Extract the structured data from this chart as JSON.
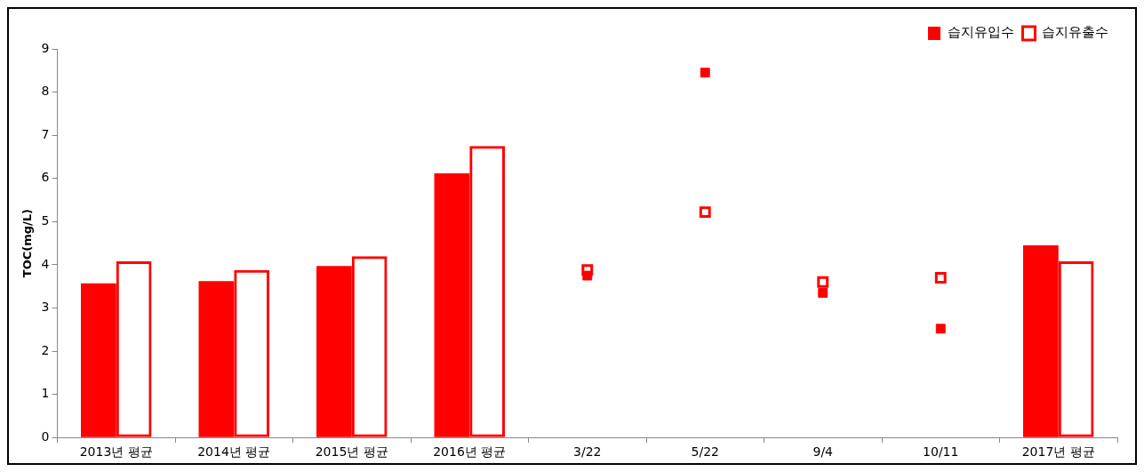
{
  "chart_data": {
    "type": "bar",
    "ylabel": "TOC(mg/L)",
    "categories": [
      "2013년 평균",
      "2014년 평균",
      "2015년 평균",
      "2016년 평균",
      "3/22",
      "5/22",
      "9/4",
      "10/11",
      "2017년 평균"
    ],
    "series": [
      {
        "name": "습지유입수",
        "color": "#ff0000",
        "values": [
          3.57,
          3.62,
          3.97,
          6.12,
          null,
          null,
          null,
          null,
          4.45
        ]
      },
      {
        "name": "습지유출수",
        "color": "#ff0000",
        "values": [
          4.08,
          3.88,
          4.2,
          6.75,
          null,
          null,
          null,
          null,
          4.08
        ]
      },
      {
        "type": "scatter",
        "color": "#ff0000",
        "x": [
          "3/22",
          "5/22",
          "9/4",
          "10/11"
        ],
        "values": [
          3.75,
          8.45,
          3.35,
          2.52
        ]
      },
      {
        "type": "scatter",
        "color": "#ff0000",
        "x": [
          "3/22",
          "5/22",
          "9/4",
          "10/11"
        ],
        "values": [
          3.88,
          5.22,
          3.6,
          3.7
        ]
      }
    ],
    "ylim": [
      0,
      9
    ],
    "yticks": [
      0,
      1,
      2,
      3,
      4,
      5,
      6,
      7,
      8,
      9
    ],
    "grid": false,
    "legend": "top right",
    "marker": "square"
  }
}
